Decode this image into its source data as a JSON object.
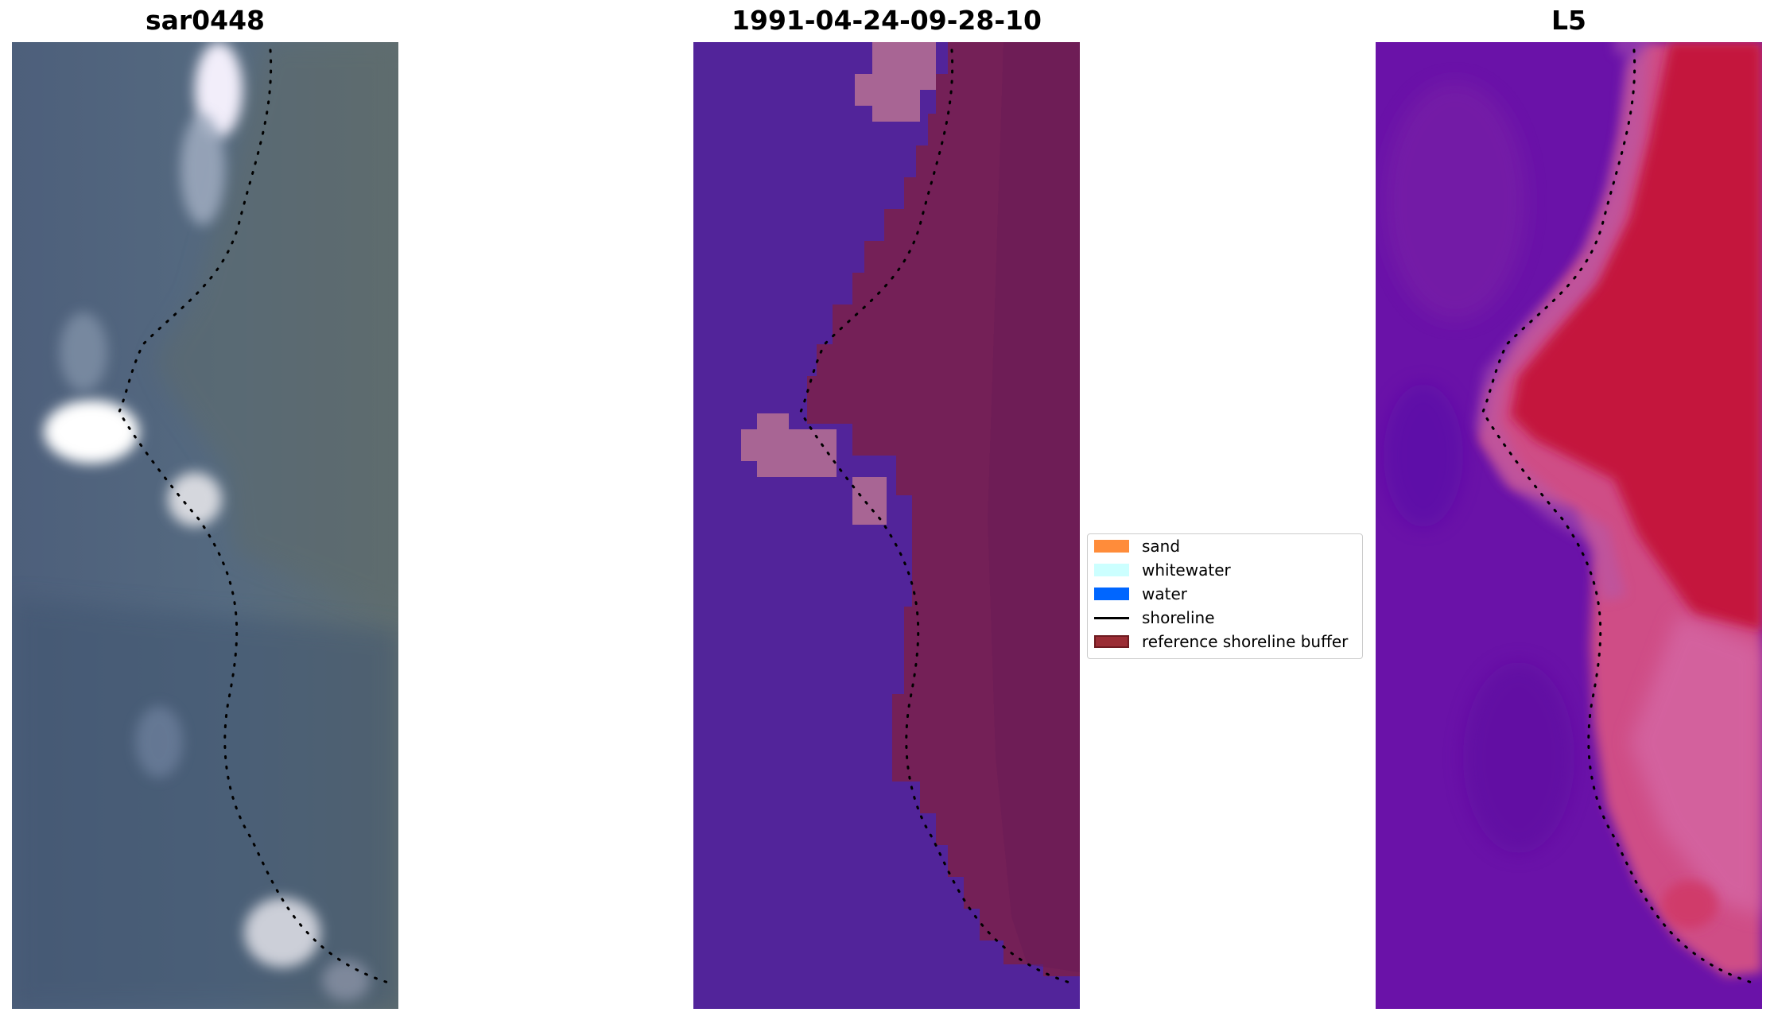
{
  "panels": [
    {
      "title": "sar0448"
    },
    {
      "title": "1991-04-24-09-28-10"
    },
    {
      "title": "L5"
    }
  ],
  "legend": {
    "items": [
      {
        "label": "sand",
        "color": "#ff8c3a",
        "kind": "patch"
      },
      {
        "label": "whitewater",
        "color": "#ccffff",
        "kind": "patch"
      },
      {
        "label": "water",
        "color": "#0066ff",
        "kind": "patch"
      },
      {
        "label": "shoreline",
        "color": "#000000",
        "kind": "line"
      },
      {
        "label": "reference shoreline buffer",
        "color": "#9a2d35",
        "edge": "#6e1a20",
        "kind": "patch"
      }
    ]
  },
  "colors": {
    "rgb_water": "#4a5e78",
    "rgb_land": "#5f6d70",
    "classified_water": "#52249a",
    "classified_buffer": "#742057",
    "classified_patch": "#a86594",
    "index_water": "#6a12a8",
    "index_land": "#c4123e"
  }
}
